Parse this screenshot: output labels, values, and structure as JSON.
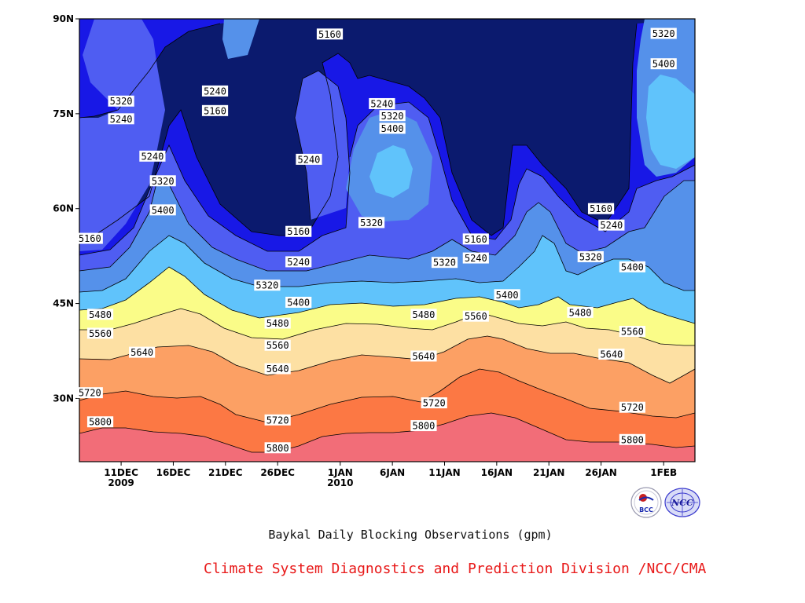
{
  "chart_data": {
    "type": "heatmap",
    "title": "Baykal Daily Blocking Observations (gpm)",
    "x_axis": {
      "unit": "date",
      "range": [
        "2009-12-07",
        "2010-02-04"
      ],
      "tick_dates": [
        "2009-12-11",
        "2009-12-16",
        "2009-12-21",
        "2009-12-26",
        "2010-01-01",
        "2010-01-06",
        "2010-01-11",
        "2010-01-16",
        "2010-01-21",
        "2010-01-26",
        "2010-02-01"
      ],
      "tick_labels": [
        "11DEC",
        "16DEC",
        "21DEC",
        "26DEC",
        "1JAN",
        "6JAN",
        "11JAN",
        "16JAN",
        "21JAN",
        "26JAN",
        "1FEB"
      ],
      "year_labels": [
        {
          "date": "2009-12-11",
          "label": "2009"
        },
        {
          "date": "2010-01-01",
          "label": "2010"
        }
      ]
    },
    "y_axis": {
      "unit": "degrees latitude",
      "range": [
        20,
        90
      ],
      "tick_values": [
        30,
        45,
        60,
        75,
        90
      ],
      "tick_labels": [
        "30N",
        "45N",
        "60N",
        "75N",
        "90N"
      ]
    },
    "contour_levels": [
      5160,
      5240,
      5320,
      5400,
      5480,
      5560,
      5640,
      5720,
      5800
    ],
    "colors": {
      "below_5160": "#0b1a6e",
      "5160_5240": "#1818e6",
      "5240_5320": "#4f5df2",
      "5320_5400": "#5591ea",
      "5400_5480": "#60c3fb",
      "5480_5560": "#fafc88",
      "5560_5640": "#fde0a3",
      "5640_5720": "#fca064",
      "5720_5800": "#fc7844",
      "above_5800": "#f26d78"
    },
    "contour_labels": [
      {
        "date": "2009-12-11",
        "lat": 77.0,
        "value": "5320"
      },
      {
        "date": "2009-12-11",
        "lat": 74.2,
        "value": "5240"
      },
      {
        "date": "2009-12-14",
        "lat": 68.3,
        "value": "5240"
      },
      {
        "date": "2009-12-15",
        "lat": 64.4,
        "value": "5320"
      },
      {
        "date": "2009-12-15",
        "lat": 59.8,
        "value": "5400"
      },
      {
        "date": "2009-12-08",
        "lat": 55.3,
        "value": "5160"
      },
      {
        "date": "2009-12-20",
        "lat": 78.6,
        "value": "5240"
      },
      {
        "date": "2009-12-20",
        "lat": 75.5,
        "value": "5160"
      },
      {
        "date": "2009-12-31",
        "lat": 87.6,
        "value": "5160"
      },
      {
        "date": "2009-12-29",
        "lat": 67.8,
        "value": "5240"
      },
      {
        "date": "2009-12-28",
        "lat": 56.4,
        "value": "5160"
      },
      {
        "date": "2009-12-28",
        "lat": 51.6,
        "value": "5240"
      },
      {
        "date": "2009-12-25",
        "lat": 47.9,
        "value": "5320"
      },
      {
        "date": "2009-12-28",
        "lat": 45.2,
        "value": "5400"
      },
      {
        "date": "2010-01-05",
        "lat": 76.6,
        "value": "5240"
      },
      {
        "date": "2010-01-06",
        "lat": 74.7,
        "value": "5320"
      },
      {
        "date": "2010-01-06",
        "lat": 72.7,
        "value": "5400"
      },
      {
        "date": "2010-01-04",
        "lat": 57.8,
        "value": "5320"
      },
      {
        "date": "2010-01-11",
        "lat": 51.5,
        "value": "5320"
      },
      {
        "date": "2010-01-14",
        "lat": 55.2,
        "value": "5160"
      },
      {
        "date": "2010-01-14",
        "lat": 52.2,
        "value": "5240"
      },
      {
        "date": "2010-01-17",
        "lat": 46.4,
        "value": "5400"
      },
      {
        "date": "2010-01-26",
        "lat": 60.0,
        "value": "5160"
      },
      {
        "date": "2010-01-27",
        "lat": 57.4,
        "value": "5240"
      },
      {
        "date": "2010-01-25",
        "lat": 52.4,
        "value": "5320"
      },
      {
        "date": "2010-01-29",
        "lat": 50.8,
        "value": "5400"
      },
      {
        "date": "2010-02-01",
        "lat": 87.7,
        "value": "5320"
      },
      {
        "date": "2010-02-01",
        "lat": 82.9,
        "value": "5400"
      },
      {
        "date": "2009-12-09",
        "lat": 43.3,
        "value": "5480"
      },
      {
        "date": "2009-12-26",
        "lat": 41.9,
        "value": "5480"
      },
      {
        "date": "2010-01-09",
        "lat": 43.3,
        "value": "5480"
      },
      {
        "date": "2010-01-24",
        "lat": 43.6,
        "value": "5480"
      },
      {
        "date": "2009-12-09",
        "lat": 40.3,
        "value": "5560"
      },
      {
        "date": "2009-12-26",
        "lat": 38.4,
        "value": "5560"
      },
      {
        "date": "2010-01-14",
        "lat": 43.0,
        "value": "5560"
      },
      {
        "date": "2010-01-29",
        "lat": 40.6,
        "value": "5560"
      },
      {
        "date": "2009-12-13",
        "lat": 37.3,
        "value": "5640"
      },
      {
        "date": "2009-12-26",
        "lat": 34.7,
        "value": "5640"
      },
      {
        "date": "2010-01-09",
        "lat": 36.7,
        "value": "5640"
      },
      {
        "date": "2010-01-27",
        "lat": 37.0,
        "value": "5640"
      },
      {
        "date": "2009-12-08",
        "lat": 30.9,
        "value": "5720"
      },
      {
        "date": "2009-12-26",
        "lat": 26.6,
        "value": "5720"
      },
      {
        "date": "2010-01-10",
        "lat": 29.3,
        "value": "5720"
      },
      {
        "date": "2010-01-29",
        "lat": 28.6,
        "value": "5720"
      },
      {
        "date": "2009-12-09",
        "lat": 26.3,
        "value": "5800"
      },
      {
        "date": "2009-12-26",
        "lat": 22.2,
        "value": "5800"
      },
      {
        "date": "2010-01-09",
        "lat": 25.7,
        "value": "5800"
      },
      {
        "date": "2010-01-29",
        "lat": 23.5,
        "value": "5800"
      }
    ],
    "grid": false,
    "legend": "none"
  },
  "captions": {
    "main": "Baykal Daily Blocking Observations (gpm)",
    "credit": "Climate System Diagnostics and Prediction Division /NCC/CMA"
  },
  "logos": {
    "left_text": "BCC",
    "right_text": "NCC"
  }
}
